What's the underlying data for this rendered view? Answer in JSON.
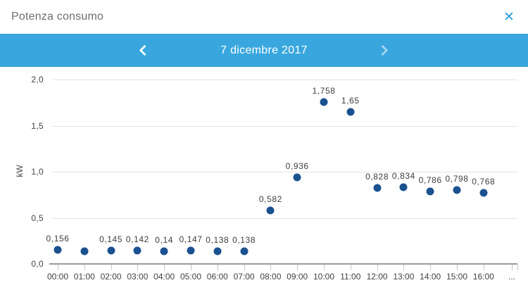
{
  "header": {
    "title": "Potenza consumo",
    "close_icon_glyph": "✕"
  },
  "nav": {
    "date": "7 dicembre 2017",
    "prev_icon": "chevron-left-icon",
    "next_icon": "chevron-right-icon"
  },
  "colors": {
    "nav_bg": "#39a7de",
    "close_icon_blue": "#2d9fd8",
    "dot_blue": "#1b5190",
    "gridline": "#e3e3e3",
    "axis_line": "#9b9b9b",
    "title_gray": "#6e6e6e",
    "label_dark": "#3d3d3d"
  },
  "chart_data": {
    "type": "scatter",
    "title": "Potenza consumo",
    "xlabel": "",
    "ylabel": "kW",
    "ylim": [
      0,
      2.0
    ],
    "grid": true,
    "yticks": [
      {
        "value": 0.0,
        "label": "0,0"
      },
      {
        "value": 0.5,
        "label": "0,5"
      },
      {
        "value": 1.0,
        "label": "1,0"
      },
      {
        "value": 1.5,
        "label": "1,5"
      },
      {
        "value": 2.0,
        "label": "2,0"
      }
    ],
    "overflow_label": "...",
    "points": [
      {
        "x": "00:00",
        "value": 0.156,
        "label": "0,156"
      },
      {
        "x": "01:00",
        "value": 0.14,
        "label": ""
      },
      {
        "x": "02:00",
        "value": 0.145,
        "label": "0,145"
      },
      {
        "x": "03:00",
        "value": 0.142,
        "label": "0,142"
      },
      {
        "x": "04:00",
        "value": 0.14,
        "label": "0,14"
      },
      {
        "x": "05:00",
        "value": 0.147,
        "label": "0,147"
      },
      {
        "x": "06:00",
        "value": 0.138,
        "label": "0,138"
      },
      {
        "x": "07:00",
        "value": 0.138,
        "label": "0,138"
      },
      {
        "x": "08:00",
        "value": 0.582,
        "label": "0,582"
      },
      {
        "x": "09:00",
        "value": 0.936,
        "label": "0,936"
      },
      {
        "x": "10:00",
        "value": 1.758,
        "label": "1,758"
      },
      {
        "x": "11:00",
        "value": 1.65,
        "label": "1,65"
      },
      {
        "x": "12:00",
        "value": 0.828,
        "label": "0,828"
      },
      {
        "x": "13:00",
        "value": 0.834,
        "label": "0,834"
      },
      {
        "x": "14:00",
        "value": 0.786,
        "label": "0,786"
      },
      {
        "x": "15:00",
        "value": 0.798,
        "label": "0,798"
      },
      {
        "x": "16:00",
        "value": 0.768,
        "label": "0,768"
      },
      {
        "x": "...",
        "value": null,
        "label": ""
      }
    ]
  }
}
